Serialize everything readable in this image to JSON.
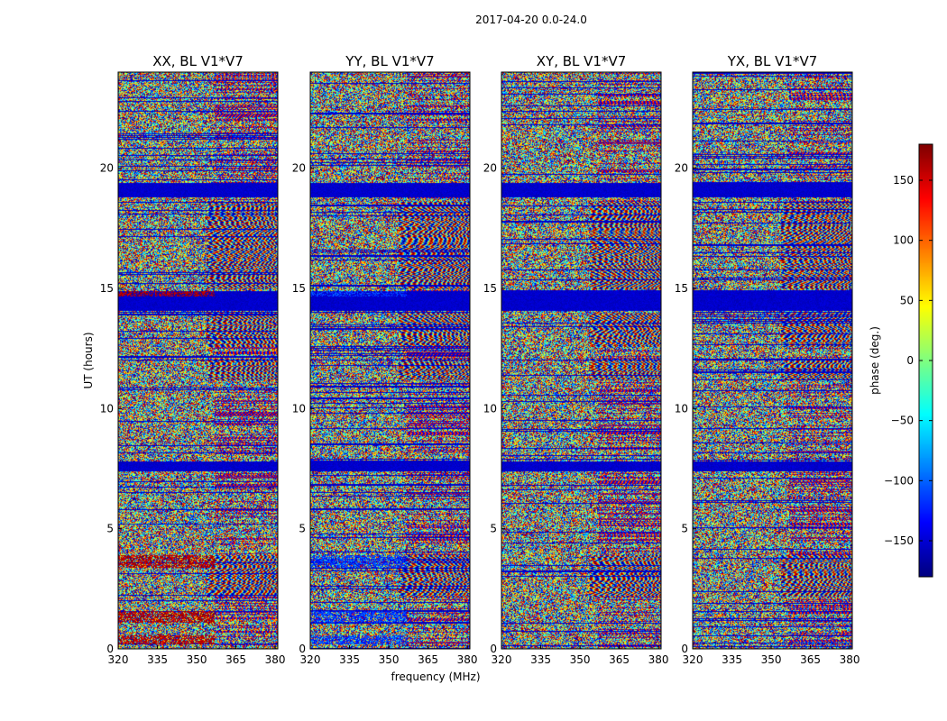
{
  "suptitle": "2017-04-20 0.0-24.0",
  "chart_data": {
    "type": "heatmap",
    "panels": [
      {
        "title": "XX, BL V1*V7",
        "polarization": "XX",
        "seed": 11
      },
      {
        "title": "YY, BL V1*V7",
        "polarization": "YY",
        "seed": 23
      },
      {
        "title": "XY, BL V1*V7",
        "polarization": "XY",
        "seed": 37
      },
      {
        "title": "YX, BL V1*V7",
        "polarization": "YX",
        "seed": 53
      }
    ],
    "xlabel": "frequency (MHz)",
    "ylabel": "UT (hours)",
    "xlim": [
      320,
      381
    ],
    "ylim": [
      0,
      24
    ],
    "xticks": [
      320,
      335,
      350,
      365,
      380
    ],
    "yticks": [
      0,
      5,
      10,
      15,
      20
    ],
    "colorbar": {
      "label": "phase (deg.)",
      "range": [
        -180,
        180
      ],
      "ticks": [
        150,
        100,
        50,
        0,
        -50,
        -100,
        -150
      ],
      "tick_labels": [
        "150",
        "100",
        "50",
        "0",
        "−50",
        "−100",
        "−150"
      ],
      "colormap": "jet"
    },
    "fringe_bands_hours": [
      [
        2.2,
        3.9
      ],
      [
        15.0,
        18.6
      ],
      [
        11.2,
        12.1
      ],
      [
        12.6,
        14.0
      ]
    ],
    "flagged_bands_hours": [
      [
        14.1,
        14.9
      ],
      [
        7.4,
        7.8
      ],
      [
        18.8,
        19.4
      ]
    ],
    "red_bands_XX_hours": [
      [
        0.2,
        0.6
      ],
      [
        1.1,
        1.6
      ],
      [
        3.4,
        3.9
      ],
      [
        14.7,
        14.9
      ]
    ]
  }
}
